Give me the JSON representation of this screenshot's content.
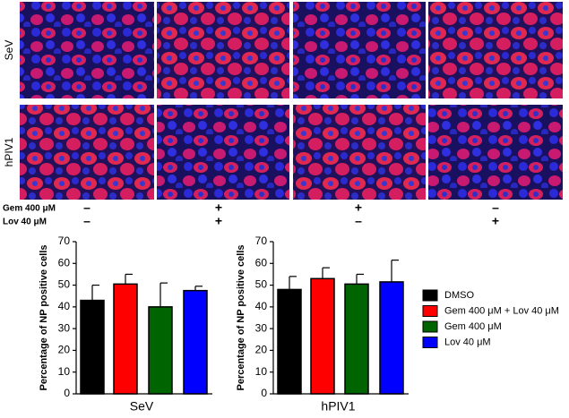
{
  "panel": {
    "row_labels": [
      "SeV",
      "hPIV1"
    ],
    "treatments": [
      {
        "label": "Gem 400 μM",
        "signs": [
          "–",
          "+",
          "+",
          "–"
        ]
      },
      {
        "label": "Lov 40 μM",
        "signs": [
          "–",
          "+",
          "–",
          "+"
        ]
      }
    ]
  },
  "chart_data": [
    {
      "type": "bar",
      "y_label": "Percentage of NP positive cells",
      "x_label": "SeV",
      "ylim": [
        0,
        70
      ],
      "yticks": [
        0,
        10,
        20,
        30,
        40,
        50,
        60,
        70
      ],
      "series": [
        {
          "color": "#000000",
          "values": [
            43
          ],
          "errors": [
            7
          ]
        },
        {
          "color": "#ff0000",
          "values": [
            50.5
          ],
          "errors": [
            4.5
          ]
        },
        {
          "color": "#006400",
          "values": [
            40
          ],
          "errors": [
            11
          ]
        },
        {
          "color": "#0000ff",
          "values": [
            47.5
          ],
          "errors": [
            2
          ]
        }
      ]
    },
    {
      "type": "bar",
      "y_label": "Percentage of NP positive cells",
      "x_label": "hPIV1",
      "ylim": [
        0,
        70
      ],
      "yticks": [
        0,
        10,
        20,
        30,
        40,
        50,
        60,
        70
      ],
      "series": [
        {
          "name": "DMSO",
          "color": "#000000",
          "values": [
            48
          ],
          "errors": [
            6
          ]
        },
        {
          "name": "Gem 400 μM + Lov 40 μM",
          "color": "#ff0000",
          "values": [
            53
          ],
          "errors": [
            5
          ]
        },
        {
          "name": "Gem 400 μM",
          "color": "#006400",
          "values": [
            50.5
          ],
          "errors": [
            4.5
          ]
        },
        {
          "name": "Lov 40 μM",
          "color": "#0000ff",
          "values": [
            51.5
          ],
          "errors": [
            10
          ]
        }
      ]
    }
  ]
}
